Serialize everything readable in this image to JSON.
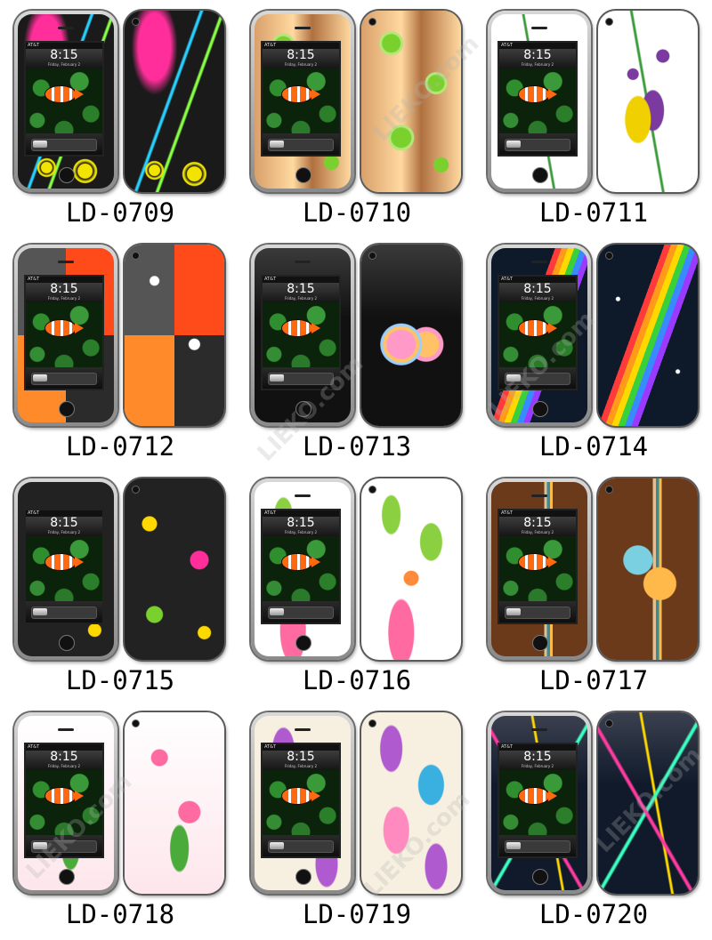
{
  "lock_screen": {
    "time": "8:15",
    "date": "Friday, February 2",
    "carrier": "AT&T"
  },
  "watermark_text": "LIEKO.com",
  "items": [
    {
      "code": "LD-0709",
      "pattern": "pink-splash-circles",
      "colors": [
        "#1a1a1a",
        "#ff2e9a",
        "#f2e400",
        "#27d0ff"
      ]
    },
    {
      "code": "LD-0710",
      "pattern": "green-flowers-orange",
      "colors": [
        "#d9a06a",
        "#ffd9a0",
        "#7ad12e",
        "#b5e67a"
      ]
    },
    {
      "code": "LD-0711",
      "pattern": "butterfly-bellflower",
      "colors": [
        "#ffffff",
        "#7a3aa0",
        "#f0d000",
        "#3a9a3a"
      ]
    },
    {
      "code": "LD-0712",
      "pattern": "moons-stars-retro",
      "colors": [
        "#2b2b2b",
        "#ff4a1a",
        "#ff8a2a",
        "#ffffff"
      ]
    },
    {
      "code": "LD-0713",
      "pattern": "hearts-on-black",
      "colors": [
        "#111111",
        "#ff9ac8",
        "#ffc266",
        "#9ad0ff"
      ]
    },
    {
      "code": "LD-0714",
      "pattern": "rainbow-stars",
      "colors": [
        "#0e1a2a",
        "#ff3a3a",
        "#ffd800",
        "#3a8aff"
      ]
    },
    {
      "code": "LD-0715",
      "pattern": "retro-groovy-peace",
      "colors": [
        "#222222",
        "#ff2e9a",
        "#ffd800",
        "#7ad12e"
      ]
    },
    {
      "code": "LD-0716",
      "pattern": "leaves-flowers-white",
      "colors": [
        "#ffffff",
        "#8ad040",
        "#ff8a3a",
        "#ff6aa0"
      ]
    },
    {
      "code": "LD-0717",
      "pattern": "hibiscus-brown-stripes",
      "colors": [
        "#6a3a1a",
        "#7ad0e0",
        "#ffb84a",
        "#e0c090"
      ]
    },
    {
      "code": "LD-0718",
      "pattern": "pink-lilies",
      "colors": [
        "#fde6ec",
        "#ff6aa0",
        "#4aaa3a",
        "#ffffff"
      ]
    },
    {
      "code": "LD-0719",
      "pattern": "paisley-swirls",
      "colors": [
        "#f7f0e0",
        "#b05ad0",
        "#3ab0e0",
        "#ff8ac0"
      ]
    },
    {
      "code": "LD-0720",
      "pattern": "neon-streaks-dark",
      "colors": [
        "#101a2a",
        "#ff3aa0",
        "#3affc0",
        "#ffd800"
      ]
    }
  ]
}
